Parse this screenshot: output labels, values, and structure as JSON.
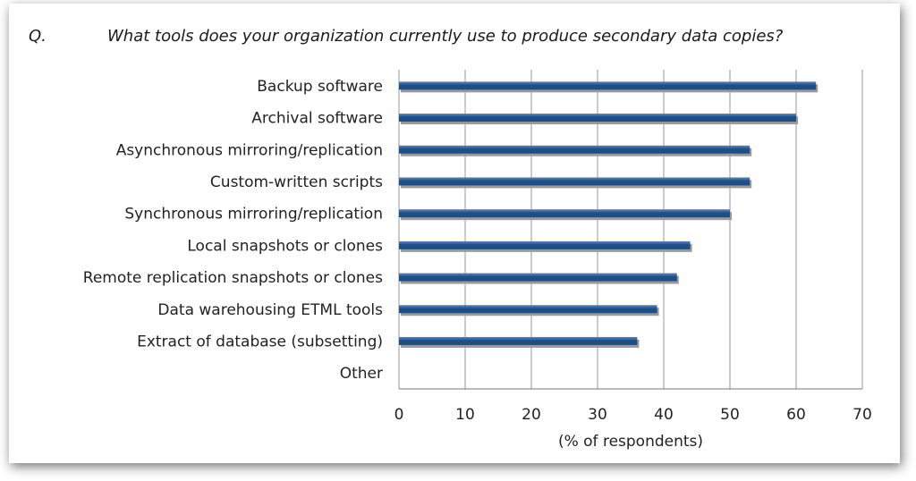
{
  "question": {
    "marker": "Q.",
    "text": "What tools does your organization currently use to produce secondary data copies?"
  },
  "chart_data": {
    "type": "bar",
    "orientation": "horizontal",
    "categories": [
      "Backup software",
      "Archival software",
      "Asynchronous mirroring/replication",
      "Custom-written scripts",
      "Synchronous mirroring/replication",
      "Local snapshots or clones",
      "Remote replication snapshots or clones",
      "Data warehousing ETML tools",
      "Extract of database (subsetting)",
      "Other"
    ],
    "values": [
      63,
      60,
      53,
      53,
      50,
      44,
      42,
      39,
      36,
      0
    ],
    "xlabel": "(% of respondents)",
    "xlim": [
      0,
      70
    ],
    "xticks": [
      0,
      10,
      20,
      30,
      40,
      50,
      60,
      70
    ],
    "grid": true,
    "bar_color": "#1f4e87",
    "bar_highlight": "#5c86b8",
    "shadow_color": "#9a9a9a",
    "grid_color": "#999999"
  }
}
